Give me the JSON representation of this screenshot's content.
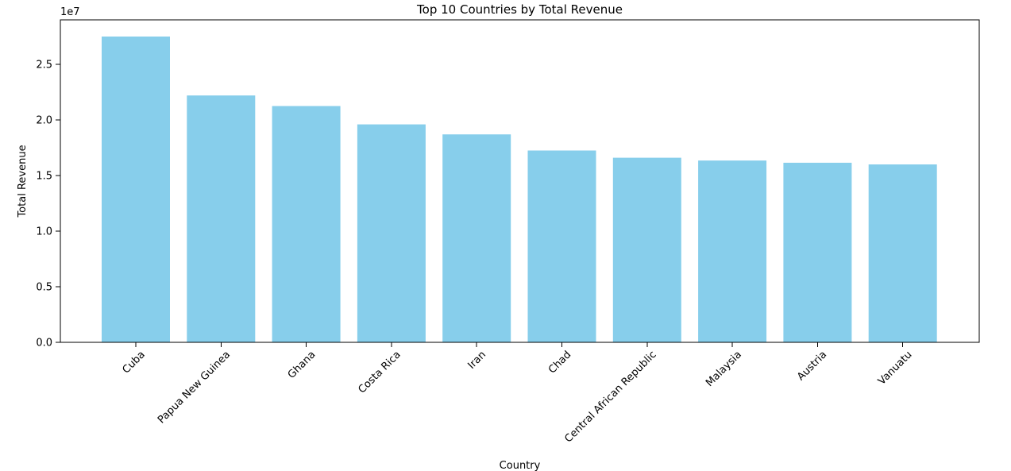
{
  "chart_data": {
    "type": "bar",
    "title": "Top 10 Countries by Total Revenue",
    "xlabel": "Country",
    "ylabel": "Total Revenue",
    "y_scale_label": "1e7",
    "y_scale_factor": 10000000,
    "categories": [
      "Cuba",
      "Papua New Guinea",
      "Ghana",
      "Costa Rica",
      "Iran",
      "Chad",
      "Central African Republic",
      "Malaysia",
      "Austria",
      "Vanuatu"
    ],
    "values": [
      27500000,
      22200000,
      21250000,
      19600000,
      18700000,
      17250000,
      16600000,
      16350000,
      16150000,
      16000000
    ],
    "ylim": [
      0,
      29000000
    ],
    "y_ticks": [
      0,
      5000000,
      10000000,
      15000000,
      20000000,
      25000000
    ],
    "y_tick_labels": [
      "0.0",
      "0.5",
      "1.0",
      "1.5",
      "2.0",
      "2.5"
    ],
    "bar_color": "#87CEEB",
    "grid": false,
    "legend": "none"
  }
}
